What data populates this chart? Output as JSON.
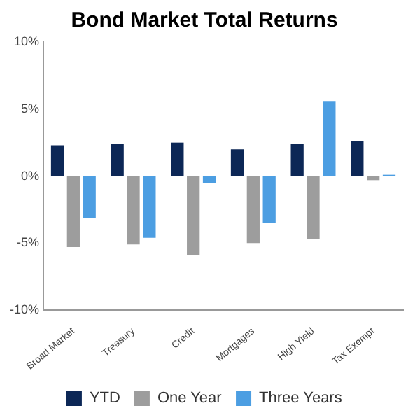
{
  "chart_data": {
    "type": "bar",
    "title": "Bond Market Total Returns",
    "categories": [
      "Broad Market",
      "Treasury",
      "Credit",
      "Mortgages",
      "High Yield",
      "Tax Exempt"
    ],
    "series": [
      {
        "name": "YTD",
        "color": "#0c2756",
        "values": [
          2.3,
          2.4,
          2.5,
          2.0,
          2.4,
          2.6
        ]
      },
      {
        "name": "One Year",
        "color": "#9d9d9d",
        "values": [
          -5.3,
          -5.1,
          -5.9,
          -5.0,
          -4.7,
          -0.3
        ]
      },
      {
        "name": "Three Years",
        "color": "#4c9ee2",
        "values": [
          -3.1,
          -4.6,
          -0.5,
          -3.5,
          5.6,
          0.1
        ]
      }
    ],
    "ylim": [
      -10,
      10
    ],
    "yticks": [
      {
        "value": -10,
        "label": "-10%"
      },
      {
        "value": -5,
        "label": "-5%"
      },
      {
        "value": 0,
        "label": "0%"
      },
      {
        "value": 5,
        "label": "5%"
      },
      {
        "value": 10,
        "label": "10%"
      }
    ],
    "grid": false,
    "legend": "bottom"
  }
}
